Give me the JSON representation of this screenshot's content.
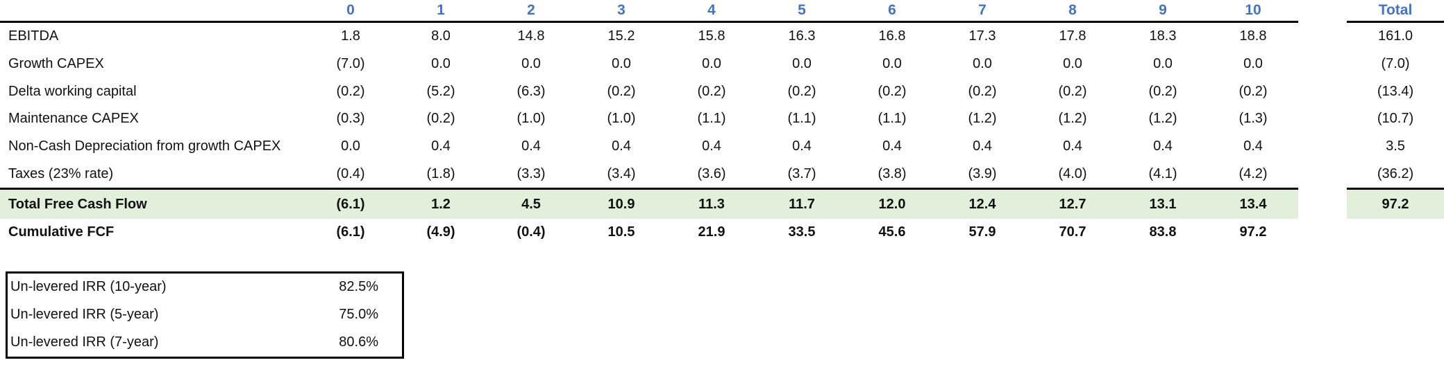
{
  "colors": {
    "header_blue": "#4472C4",
    "highlight_green": "#E2EFDA",
    "rule_black": "#000000"
  },
  "table": {
    "period_headers": [
      "0",
      "1",
      "2",
      "3",
      "4",
      "5",
      "6",
      "7",
      "8",
      "9",
      "10"
    ],
    "total_header": "Total",
    "rows": [
      {
        "label": "EBITDA",
        "style": "normal",
        "values": [
          "1.8",
          "8.0",
          "14.8",
          "15.2",
          "15.8",
          "16.3",
          "16.8",
          "17.3",
          "17.8",
          "18.3",
          "18.8"
        ],
        "total": "161.0"
      },
      {
        "label": "Growth CAPEX",
        "style": "normal",
        "values": [
          "(7.0)",
          "0.0",
          "0.0",
          "0.0",
          "0.0",
          "0.0",
          "0.0",
          "0.0",
          "0.0",
          "0.0",
          "0.0"
        ],
        "total": "(7.0)"
      },
      {
        "label": "Delta working capital",
        "style": "normal",
        "values": [
          "(0.2)",
          "(5.2)",
          "(6.3)",
          "(0.2)",
          "(0.2)",
          "(0.2)",
          "(0.2)",
          "(0.2)",
          "(0.2)",
          "(0.2)",
          "(0.2)"
        ],
        "total": "(13.4)"
      },
      {
        "label": "Maintenance CAPEX",
        "style": "normal",
        "values": [
          "(0.3)",
          "(0.2)",
          "(1.0)",
          "(1.0)",
          "(1.1)",
          "(1.1)",
          "(1.1)",
          "(1.2)",
          "(1.2)",
          "(1.2)",
          "(1.3)"
        ],
        "total": "(10.7)"
      },
      {
        "label": "Non-Cash Depreciation from growth CAPEX",
        "style": "normal",
        "values": [
          "0.0",
          "0.4",
          "0.4",
          "0.4",
          "0.4",
          "0.4",
          "0.4",
          "0.4",
          "0.4",
          "0.4",
          "0.4"
        ],
        "total": "3.5"
      },
      {
        "label": "Taxes (23% rate)",
        "style": "normal",
        "values": [
          "(0.4)",
          "(1.8)",
          "(3.3)",
          "(3.4)",
          "(3.6)",
          "(3.7)",
          "(3.8)",
          "(3.9)",
          "(4.0)",
          "(4.1)",
          "(4.2)"
        ],
        "total": "(36.2)"
      },
      {
        "label": "Total Free Cash Flow",
        "style": "highlight",
        "values": [
          "(6.1)",
          "1.2",
          "4.5",
          "10.9",
          "11.3",
          "11.7",
          "12.0",
          "12.4",
          "12.7",
          "13.1",
          "13.4"
        ],
        "total": "97.2"
      },
      {
        "label": "Cumulative FCF",
        "style": "bold",
        "values": [
          "(6.1)",
          "(4.9)",
          "(0.4)",
          "10.5",
          "21.9",
          "33.5",
          "45.6",
          "57.9",
          "70.7",
          "83.8",
          "97.2"
        ],
        "total": ""
      }
    ]
  },
  "irr_box": {
    "rows": [
      {
        "label": "Un-levered IRR (10-year)",
        "value": "82.5%"
      },
      {
        "label": "Un-levered IRR (5-year)",
        "value": "75.0%"
      },
      {
        "label": "Un-levered IRR (7-year)",
        "value": "80.6%"
      }
    ]
  }
}
